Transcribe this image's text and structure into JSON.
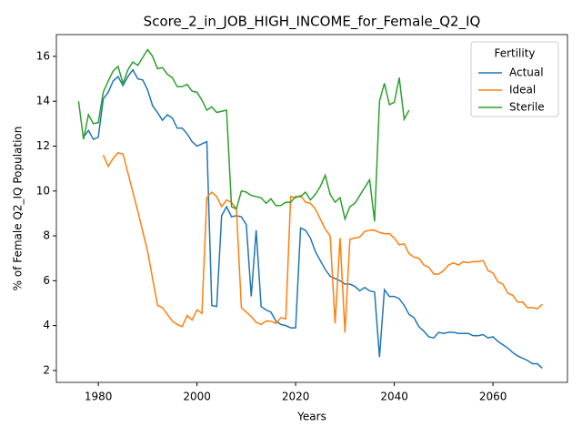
{
  "chart_data": {
    "type": "line",
    "title": "Score_2_in_JOB_HIGH_INCOME_for_Female_Q2_IQ",
    "x_label": "Years",
    "y_label": "% of Female Q2_IQ Population",
    "legend_title": "Fertility",
    "legend_position": "upper right",
    "x": [
      1976,
      1977,
      1978,
      1979,
      1980,
      1981,
      1982,
      1983,
      1984,
      1985,
      1986,
      1987,
      1988,
      1989,
      1990,
      1991,
      1992,
      1993,
      1994,
      1995,
      1996,
      1997,
      1998,
      1999,
      2000,
      2001,
      2002,
      2003,
      2004,
      2005,
      2006,
      2007,
      2008,
      2009,
      2010,
      2011,
      2012,
      2013,
      2014,
      2015,
      2016,
      2017,
      2018,
      2019,
      2020,
      2021,
      2022,
      2023,
      2024,
      2025,
      2026,
      2027,
      2028,
      2029,
      2030,
      2031,
      2032,
      2033,
      2034,
      2035,
      2036,
      2037,
      2038,
      2039,
      2040,
      2041,
      2042,
      2043,
      2044,
      2045,
      2046,
      2047,
      2048,
      2049,
      2050,
      2051,
      2052,
      2053,
      2054,
      2055,
      2056,
      2057,
      2058,
      2059,
      2060,
      2061,
      2062,
      2063,
      2064,
      2065,
      2066,
      2067,
      2068,
      2069,
      2070
    ],
    "series": [
      {
        "name": "Actual",
        "color": "#1f77b4",
        "values": [
          null,
          12.4,
          12.7,
          12.3,
          12.4,
          14.1,
          14.4,
          14.9,
          15.1,
          14.7,
          15.1,
          15.4,
          15.0,
          14.95,
          14.5,
          13.8,
          13.5,
          13.15,
          13.4,
          13.25,
          12.8,
          12.8,
          12.55,
          12.2,
          12.0,
          12.1,
          12.2,
          4.9,
          4.85,
          8.9,
          9.3,
          8.85,
          8.9,
          8.85,
          8.5,
          5.3,
          8.25,
          4.85,
          4.7,
          4.6,
          4.2,
          4.05,
          4.0,
          3.9,
          3.9,
          8.35,
          8.25,
          7.9,
          7.3,
          6.9,
          6.5,
          6.2,
          6.1,
          6.0,
          5.85,
          5.85,
          5.75,
          5.55,
          5.7,
          5.55,
          5.5,
          2.6,
          5.6,
          5.3,
          5.3,
          5.2,
          4.9,
          4.5,
          4.35,
          3.95,
          3.75,
          3.5,
          3.45,
          3.7,
          3.65,
          3.7,
          3.7,
          3.65,
          3.65,
          3.65,
          3.55,
          3.55,
          3.6,
          3.45,
          3.5,
          3.3,
          3.15,
          3.0,
          2.8,
          2.65,
          2.55,
          2.45,
          2.3,
          2.3,
          2.1
        ]
      },
      {
        "name": "Ideal",
        "color": "#ff7f0e",
        "values": [
          null,
          null,
          null,
          null,
          null,
          11.6,
          11.1,
          11.45,
          11.7,
          11.65,
          10.8,
          9.95,
          9.1,
          8.2,
          7.3,
          6.1,
          4.9,
          4.8,
          4.5,
          4.2,
          4.05,
          3.95,
          4.45,
          4.25,
          4.7,
          4.55,
          9.7,
          9.95,
          9.75,
          9.3,
          9.6,
          9.5,
          9.2,
          4.8,
          4.6,
          4.4,
          4.15,
          4.05,
          4.2,
          4.2,
          4.1,
          4.35,
          4.3,
          9.75,
          9.7,
          9.8,
          9.5,
          9.45,
          9.2,
          8.75,
          8.3,
          8.0,
          4.1,
          7.9,
          3.7,
          7.85,
          7.9,
          7.95,
          8.2,
          8.25,
          8.25,
          8.15,
          8.1,
          8.1,
          7.9,
          7.6,
          7.65,
          7.2,
          7.05,
          7.0,
          6.7,
          6.6,
          6.3,
          6.3,
          6.45,
          6.7,
          6.8,
          6.7,
          6.85,
          6.8,
          6.85,
          6.85,
          6.9,
          6.45,
          6.35,
          5.95,
          5.85,
          5.45,
          5.35,
          5.05,
          5.05,
          4.8,
          4.8,
          4.75,
          4.95
        ]
      },
      {
        "name": "Sterile",
        "color": "#2ca02c",
        "values": [
          14.0,
          12.3,
          13.4,
          13.0,
          13.05,
          14.4,
          14.9,
          15.35,
          15.55,
          14.8,
          15.4,
          15.75,
          15.6,
          15.95,
          16.3,
          16.0,
          15.45,
          15.5,
          15.2,
          15.05,
          14.65,
          14.65,
          14.75,
          14.45,
          14.4,
          14.05,
          13.6,
          13.75,
          13.5,
          13.55,
          13.6,
          9.3,
          9.2,
          10.0,
          9.95,
          9.8,
          9.75,
          9.7,
          9.45,
          9.65,
          9.35,
          9.35,
          9.5,
          9.5,
          9.75,
          9.75,
          9.95,
          9.6,
          9.85,
          10.2,
          10.7,
          9.85,
          9.5,
          9.7,
          8.75,
          9.3,
          9.45,
          9.8,
          10.15,
          10.5,
          8.65,
          14.0,
          14.8,
          13.85,
          13.95,
          15.05,
          13.2,
          13.6,
          null,
          null,
          null,
          null,
          null,
          null,
          null,
          null,
          null,
          null,
          null,
          null,
          null,
          null,
          null,
          null,
          null,
          null,
          null,
          null,
          null,
          null,
          null,
          null,
          null,
          null,
          null
        ]
      }
    ],
    "xlim": [
      1971.5,
      2075.1
    ],
    "xticks": [
      1980,
      2000,
      2020,
      2040,
      2060
    ],
    "ylim": [
      1.47,
      16.97
    ],
    "yticks": [
      2,
      4,
      6,
      8,
      10,
      12,
      14,
      16
    ],
    "grid": false
  }
}
